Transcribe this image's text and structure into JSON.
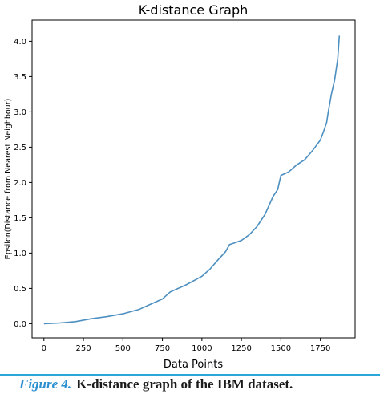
{
  "chart_data": {
    "type": "line",
    "title": "K-distance Graph",
    "xlabel": "Data Points",
    "ylabel": "Epsilon(Distance from Nearest Neighbour)",
    "xlim": [
      -75,
      1970
    ],
    "ylim": [
      -0.2,
      4.3
    ],
    "xticks": [
      0,
      250,
      500,
      750,
      1000,
      1250,
      1500,
      1750
    ],
    "yticks": [
      0.0,
      0.5,
      1.0,
      1.5,
      2.0,
      2.5,
      3.0,
      3.5,
      4.0
    ],
    "tick_labels_x": [
      "0",
      "250",
      "500",
      "750",
      "1000",
      "1250",
      "1500",
      "1750"
    ],
    "tick_labels_y": [
      "0.0",
      "0.5",
      "1.0",
      "1.5",
      "2.0",
      "2.5",
      "3.0",
      "3.5",
      "4.0"
    ],
    "grid": false,
    "series_color": "#4c8fc0",
    "series": [
      {
        "name": "",
        "x": [
          0,
          100,
          200,
          300,
          400,
          500,
          600,
          700,
          750,
          800,
          900,
          1000,
          1050,
          1100,
          1150,
          1175,
          1200,
          1250,
          1300,
          1350,
          1400,
          1450,
          1480,
          1500,
          1550,
          1600,
          1650,
          1700,
          1750,
          1770,
          1790,
          1800,
          1820,
          1840,
          1860,
          1870
        ],
        "y": [
          0.0,
          0.01,
          0.03,
          0.07,
          0.1,
          0.14,
          0.2,
          0.3,
          0.35,
          0.45,
          0.55,
          0.67,
          0.77,
          0.9,
          1.02,
          1.12,
          1.14,
          1.18,
          1.26,
          1.38,
          1.55,
          1.8,
          1.9,
          2.1,
          2.15,
          2.25,
          2.32,
          2.45,
          2.6,
          2.72,
          2.85,
          3.0,
          3.25,
          3.45,
          3.75,
          4.08
        ]
      }
    ]
  },
  "caption": {
    "label": "Figure 4.",
    "text": "K-distance graph of the IBM dataset."
  }
}
